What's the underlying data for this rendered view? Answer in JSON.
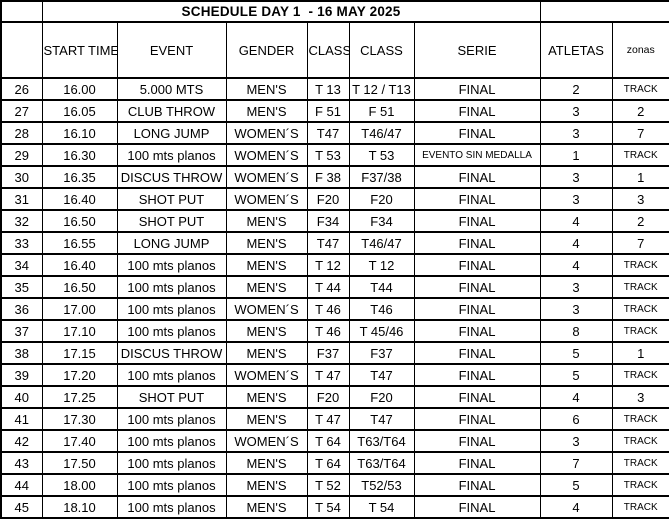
{
  "title": "SCHEDULE DAY 1  - 16 MAY 2025",
  "columns": [
    "",
    "START TIME",
    "EVENT",
    "GENDER",
    "CLASS",
    "CLASS",
    "SERIE",
    "ATLETAS",
    "zonas"
  ],
  "colors": {
    "background": "#ffffff",
    "border": "#000000",
    "text": "#000000"
  },
  "rows": [
    {
      "num": "26",
      "time": "16.00",
      "event": "5.000 MTS",
      "gender": "MEN'S",
      "class1": "T 13",
      "class2": "T 12 / T13",
      "serie": "FINAL",
      "atletas": "2",
      "zonas": "TRACK"
    },
    {
      "num": "27",
      "time": "16.05",
      "event": "CLUB THROW",
      "gender": "MEN'S",
      "class1": "F 51",
      "class2": "F 51",
      "serie": "FINAL",
      "atletas": "3",
      "zonas": "2"
    },
    {
      "num": "28",
      "time": "16.10",
      "event": "LONG JUMP",
      "gender": "WOMEN´S",
      "class1": "T47",
      "class2": "T46/47",
      "serie": "FINAL",
      "atletas": "3",
      "zonas": "7"
    },
    {
      "num": "29",
      "time": "16.30",
      "event": "100 mts planos",
      "gender": "WOMEN´S",
      "class1": "T 53",
      "class2": "T 53",
      "serie": "EVENTO SIN MEDALLA",
      "atletas": "1",
      "zonas": "TRACK"
    },
    {
      "num": "30",
      "time": "16.35",
      "event": "DISCUS THROW",
      "gender": "WOMEN´S",
      "class1": "F 38",
      "class2": "F37/38",
      "serie": "FINAL",
      "atletas": "3",
      "zonas": "1"
    },
    {
      "num": "31",
      "time": "16.40",
      "event": "SHOT PUT",
      "gender": "WOMEN´S",
      "class1": "F20",
      "class2": "F20",
      "serie": "FINAL",
      "atletas": "3",
      "zonas": "3"
    },
    {
      "num": "32",
      "time": "16.50",
      "event": "SHOT PUT",
      "gender": "MEN'S",
      "class1": "F34",
      "class2": "F34",
      "serie": "FINAL",
      "atletas": "4",
      "zonas": "2"
    },
    {
      "num": "33",
      "time": "16.55",
      "event": "LONG JUMP",
      "gender": "MEN'S",
      "class1": "T47",
      "class2": "T46/47",
      "serie": "FINAL",
      "atletas": "4",
      "zonas": "7"
    },
    {
      "num": "34",
      "time": "16.40",
      "event": "100 mts planos",
      "gender": "MEN'S",
      "class1": "T 12",
      "class2": "T 12",
      "serie": "FINAL",
      "atletas": "4",
      "zonas": "TRACK"
    },
    {
      "num": "35",
      "time": "16.50",
      "event": "100 mts planos",
      "gender": "MEN'S",
      "class1": "T 44",
      "class2": "T44",
      "serie": "FINAL",
      "atletas": "3",
      "zonas": "TRACK"
    },
    {
      "num": "36",
      "time": "17.00",
      "event": "100 mts planos",
      "gender": "WOMEN´S",
      "class1": "T 46",
      "class2": "T46",
      "serie": "FINAL",
      "atletas": "3",
      "zonas": "TRACK"
    },
    {
      "num": "37",
      "time": "17.10",
      "event": "100 mts planos",
      "gender": "MEN'S",
      "class1": "T 46",
      "class2": "T 45/46",
      "serie": "FINAL",
      "atletas": "8",
      "zonas": "TRACK"
    },
    {
      "num": "38",
      "time": "17.15",
      "event": "DISCUS THROW",
      "gender": "MEN'S",
      "class1": "F37",
      "class2": "F37",
      "serie": "FINAL",
      "atletas": "5",
      "zonas": "1"
    },
    {
      "num": "39",
      "time": "17.20",
      "event": "100 mts planos",
      "gender": "WOMEN´S",
      "class1": "T 47",
      "class2": "T47",
      "serie": "FINAL",
      "atletas": "5",
      "zonas": "TRACK"
    },
    {
      "num": "40",
      "time": "17.25",
      "event": "SHOT PUT",
      "gender": "MEN'S",
      "class1": "F20",
      "class2": "F20",
      "serie": "FINAL",
      "atletas": "4",
      "zonas": "3"
    },
    {
      "num": "41",
      "time": "17.30",
      "event": "100 mts planos",
      "gender": "MEN'S",
      "class1": "T 47",
      "class2": "T47",
      "serie": "FINAL",
      "atletas": "6",
      "zonas": "TRACK"
    },
    {
      "num": "42",
      "time": "17.40",
      "event": "100 mts planos",
      "gender": "WOMEN´S",
      "class1": "T 64",
      "class2": "T63/T64",
      "serie": "FINAL",
      "atletas": "3",
      "zonas": "TRACK"
    },
    {
      "num": "43",
      "time": "17.50",
      "event": "100 mts planos",
      "gender": "MEN'S",
      "class1": "T 64",
      "class2": "T63/T64",
      "serie": "FINAL",
      "atletas": "7",
      "zonas": "TRACK"
    },
    {
      "num": "44",
      "time": "18.00",
      "event": "100 mts planos",
      "gender": "MEN'S",
      "class1": "T 52",
      "class2": "T52/53",
      "serie": "FINAL",
      "atletas": "5",
      "zonas": "TRACK"
    },
    {
      "num": "45",
      "time": "18.10",
      "event": "100 mts planos",
      "gender": "MEN'S",
      "class1": "T 54",
      "class2": "T 54",
      "serie": "FINAL",
      "atletas": "4",
      "zonas": "TRACK"
    }
  ]
}
